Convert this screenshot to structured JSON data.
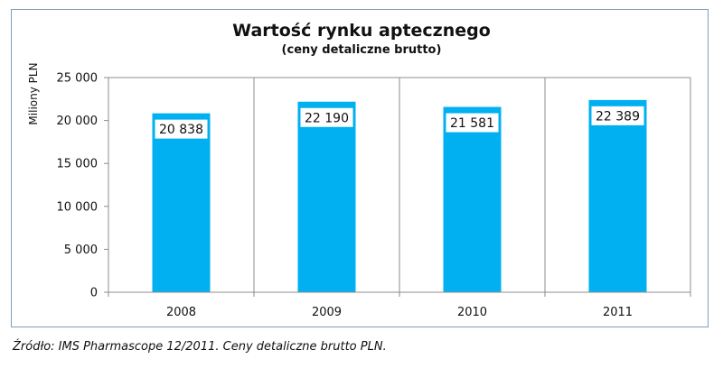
{
  "chart_data": {
    "type": "bar",
    "title": "Wartość rynku aptecznego",
    "subtitle": "(ceny detaliczne brutto)",
    "ylabel": "Miliony PLN",
    "xlabel": "",
    "categories": [
      "2008",
      "2009",
      "2010",
      "2011"
    ],
    "values": [
      20838,
      22190,
      21581,
      22389
    ],
    "data_labels": [
      "20 838",
      "22 190",
      "21 581",
      "22 389"
    ],
    "ylim": [
      0,
      25000
    ],
    "yticks": [
      0,
      5000,
      10000,
      15000,
      20000,
      25000
    ],
    "ytick_labels": [
      "0",
      "5 000",
      "10 000",
      "15 000",
      "20 000",
      "25 000"
    ],
    "grid": "vertical-category-separators",
    "bar_color": "#00b0f0",
    "legend": "none"
  },
  "source_note": "Źródło: IMS Pharmascope 12/2011. Ceny detaliczne brutto PLN."
}
